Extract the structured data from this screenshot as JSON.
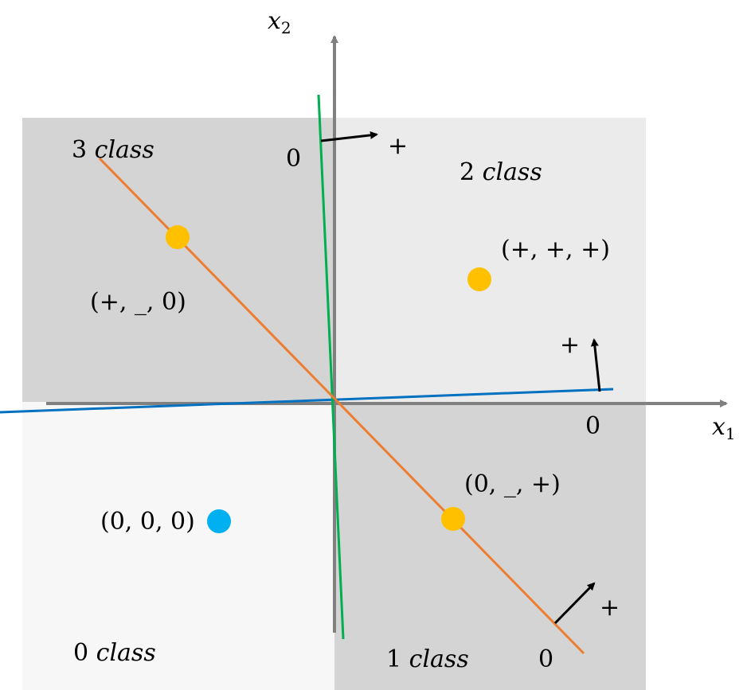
{
  "axes": {
    "x_label": "x",
    "x_sub": "1",
    "y_label": "x",
    "y_sub": "2"
  },
  "regions": {
    "class0": {
      "num": "0",
      "word": "class",
      "fill": "#f7f7f7"
    },
    "class1": {
      "num": "1",
      "word": "class",
      "fill": "#d4d4d4"
    },
    "class2": {
      "num": "2",
      "word": "class",
      "fill": "#ebebeb"
    },
    "class3": {
      "num": "3",
      "word": "class",
      "fill": "#d4d4d4"
    }
  },
  "points": [
    {
      "label": "(+, _, 0)",
      "color": "#ffc000"
    },
    {
      "label": "(+, +, +)",
      "color": "#ffc000"
    },
    {
      "label": "(0, _, +)",
      "color": "#ffc000"
    },
    {
      "label": "(0, 0, 0)",
      "color": "#00b0f0"
    }
  ],
  "lines": {
    "orange": {
      "color": "#ed7d31",
      "zero": "0",
      "plus": "+"
    },
    "green": {
      "color": "#00b050",
      "zero": "0",
      "plus": "+"
    },
    "blue": {
      "color": "#0070c0",
      "zero": "0",
      "plus": "+"
    }
  },
  "axis_color": "#808080"
}
